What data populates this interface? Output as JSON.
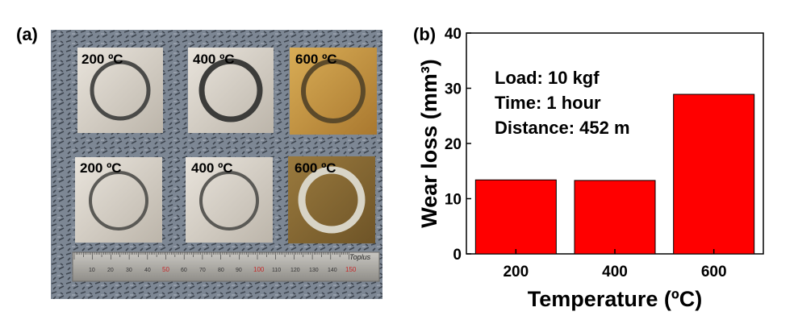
{
  "panel_a": {
    "label": "(a)",
    "samples_top": [
      "200 ºC",
      "400 ºC",
      "600 ºC"
    ],
    "samples_bottom": [
      "200 ºC",
      "400 ºC",
      "600 ºC"
    ],
    "ruler": {
      "numbers": [
        "10",
        "20",
        "30",
        "40",
        "50",
        "60",
        "70",
        "80",
        "90",
        "100",
        "110",
        "120",
        "130",
        "140",
        "150"
      ],
      "brand": "Toplus"
    }
  },
  "panel_b": {
    "label": "(b)",
    "colors": {
      "bar_fill": "#ff0000",
      "bar_stroke": "#000000"
    },
    "annotations": [
      "Load: 10 kgf",
      "Time: 1 hour",
      "Distance: 452 m"
    ]
  },
  "chart_data": {
    "type": "bar",
    "categories": [
      "200",
      "400",
      "600"
    ],
    "values": [
      13.4,
      13.3,
      28.9
    ],
    "xlabel": "Temperature (ºC)",
    "ylabel": "Wear loss (mm³)",
    "ylim": [
      0,
      40
    ],
    "yticks": [
      "0",
      "10",
      "20",
      "30",
      "40"
    ],
    "grid": false,
    "title": ""
  }
}
